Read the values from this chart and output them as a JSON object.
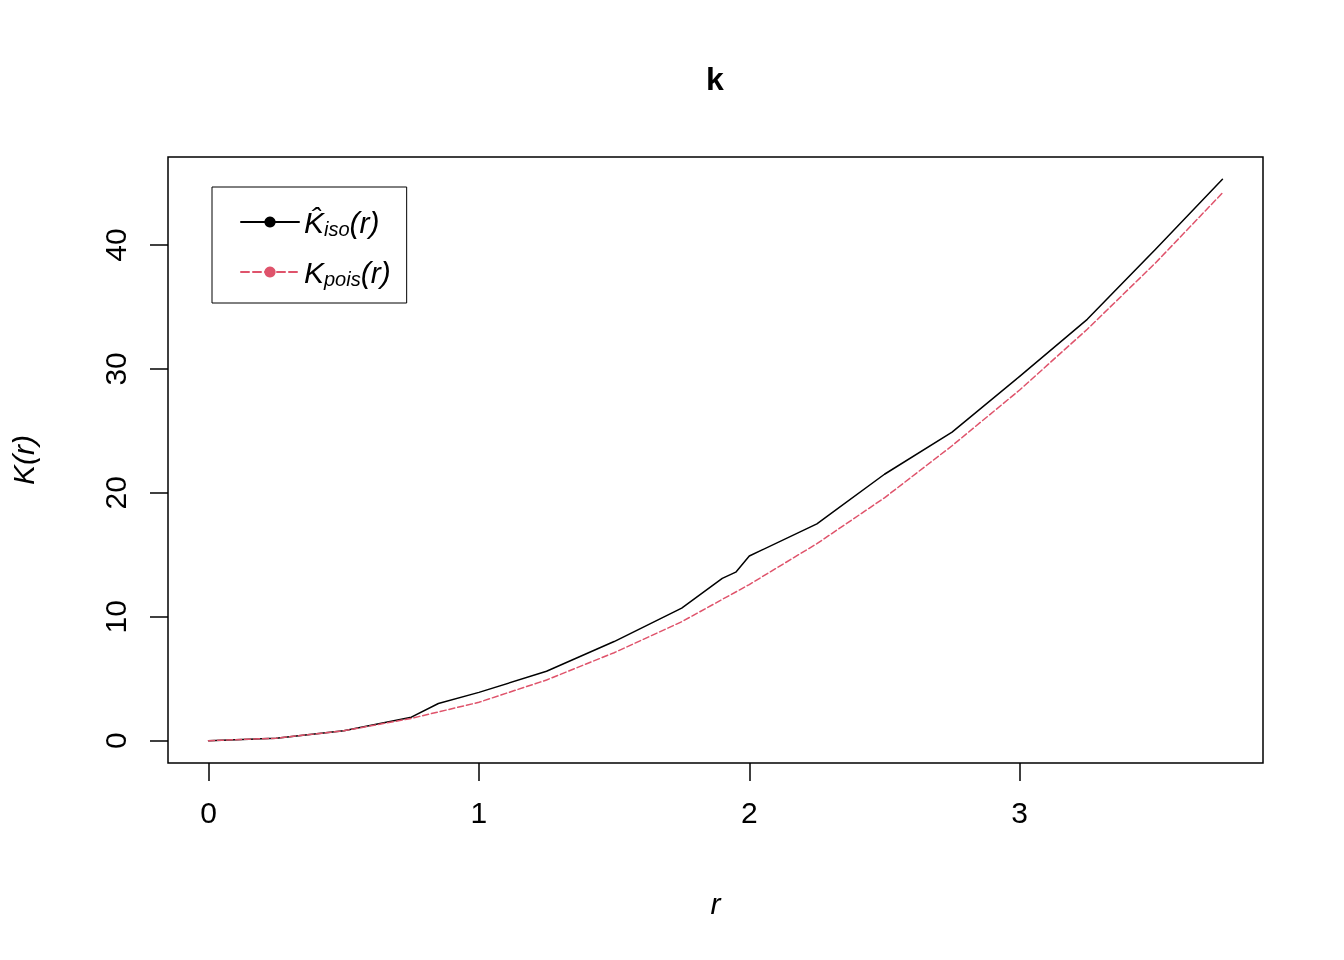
{
  "chart_data": {
    "type": "line",
    "title": "k",
    "xlabel": "r",
    "ylabel": "K(r)",
    "xlim": [
      -0.15,
      3.9
    ],
    "ylim": [
      -1.8,
      47.1
    ],
    "xticks": [
      0,
      1,
      2,
      3
    ],
    "yticks": [
      0,
      10,
      20,
      30,
      40
    ],
    "grid": false,
    "legend": "top left",
    "marker": "none",
    "series": [
      {
        "name": "K̂$_{iso}$(r)",
        "color": "#000000",
        "line_style": "solid",
        "x": [
          0,
          0.25,
          0.5,
          0.75,
          0.85,
          1,
          1.25,
          1.5,
          1.75,
          1.9,
          1.95,
          2,
          2.25,
          2.5,
          2.75,
          3,
          3.25,
          3.5,
          3.75
        ],
        "values": [
          0,
          0.2,
          0.8,
          1.9,
          3.0,
          3.9,
          5.6,
          8.0,
          10.7,
          13.1,
          13.6,
          14.9,
          17.5,
          21.5,
          24.9,
          29.4,
          34.0,
          39.6,
          45.3
        ]
      },
      {
        "name": "K$_{pois}$(r)",
        "color": "#df536b",
        "line_style": "dashed",
        "x": [
          0,
          0.25,
          0.5,
          0.75,
          1,
          1.25,
          1.5,
          1.75,
          2,
          2.25,
          2.5,
          2.75,
          3,
          3.25,
          3.5,
          3.75
        ],
        "values": [
          0,
          0.2,
          0.8,
          1.8,
          3.1,
          4.9,
          7.1,
          9.6,
          12.6,
          15.9,
          19.6,
          23.8,
          28.3,
          33.2,
          38.5,
          44.2
        ]
      }
    ]
  }
}
